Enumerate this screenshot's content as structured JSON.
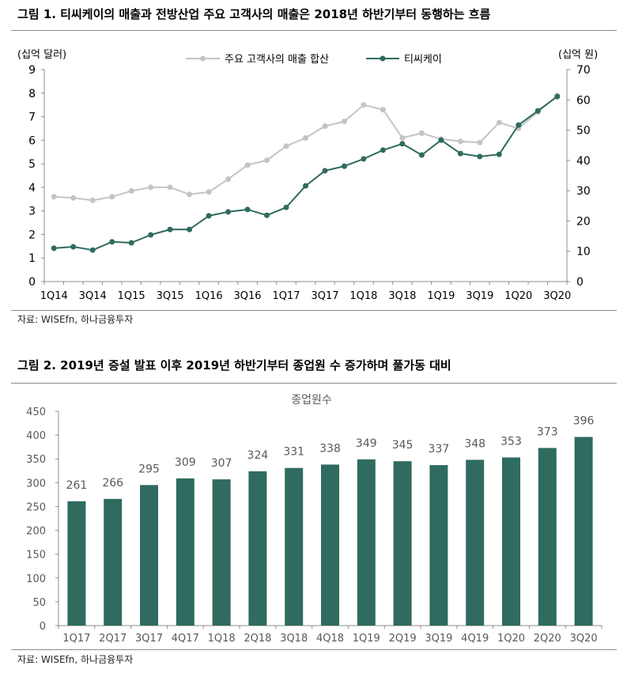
{
  "figures": [
    {
      "caption": "그림 1. 티씨케이의 매출과 전방산업 주요 고객사의 매출은 2018년 하반기부터 동행하는 흐름",
      "source": "자료: WISEfn, 하나금융투자"
    },
    {
      "caption": "그림 2. 2019년 증설 발표 이후 2019년 하반기부터 종업원 수 증가하며 풀가동 대비",
      "source": "자료: WISEfn, 하나금융투자"
    }
  ],
  "chart_data": [
    {
      "type": "line",
      "x_tick_labels": [
        "1Q14",
        "3Q14",
        "1Q15",
        "3Q15",
        "1Q16",
        "3Q16",
        "1Q17",
        "3Q17",
        "1Q18",
        "3Q18",
        "1Q19",
        "3Q19",
        "1Q20",
        "3Q20"
      ],
      "ylabel": "(십억 달러)",
      "ylabel_secondary": "(십억 원)",
      "ylim": [
        0,
        9
      ],
      "yticks": [
        0,
        1,
        2,
        3,
        4,
        5,
        6,
        7,
        8,
        9
      ],
      "ylim_secondary": [
        0,
        70
      ],
      "yticks_secondary": [
        0,
        10,
        20,
        30,
        40,
        50,
        60,
        70
      ],
      "grid": false,
      "legend": "top-center",
      "series": [
        {
          "name": "주요 고객사의 매출 합산",
          "secondary_axis": false,
          "color": "#c4c4c4",
          "values": [
            3.6,
            3.55,
            3.45,
            3.6,
            3.85,
            4.0,
            4.0,
            3.7,
            3.8,
            4.35,
            4.95,
            5.15,
            5.75,
            6.1,
            6.6,
            6.8,
            7.5,
            7.3,
            6.1,
            6.3,
            6.05,
            5.95,
            5.9,
            6.75,
            6.5,
            7.2,
            7.9
          ]
        },
        {
          "name": "티씨케이",
          "secondary_axis": true,
          "color": "#2f6b5f",
          "values": [
            11.0,
            11.5,
            10.4,
            13.1,
            12.8,
            15.4,
            17.2,
            17.2,
            21.7,
            23.0,
            23.8,
            21.9,
            24.5,
            31.6,
            36.6,
            38.1,
            40.5,
            43.4,
            45.5,
            41.8,
            46.7,
            42.3,
            41.3,
            42.0,
            51.7,
            56.4,
            61.1
          ]
        }
      ]
    },
    {
      "type": "bar",
      "title": "종업원수",
      "categories": [
        "1Q17",
        "2Q17",
        "3Q17",
        "4Q17",
        "1Q18",
        "2Q18",
        "3Q18",
        "4Q18",
        "1Q19",
        "2Q19",
        "3Q19",
        "4Q19",
        "1Q20",
        "2Q20",
        "3Q20"
      ],
      "values": [
        261,
        266,
        295,
        309,
        307,
        324,
        331,
        338,
        349,
        345,
        337,
        348,
        353,
        373,
        396
      ],
      "ylim": [
        0,
        450
      ],
      "yticks": [
        0,
        50,
        100,
        150,
        200,
        250,
        300,
        350,
        400,
        450
      ],
      "grid": false,
      "color": "#2f6b5f"
    }
  ]
}
